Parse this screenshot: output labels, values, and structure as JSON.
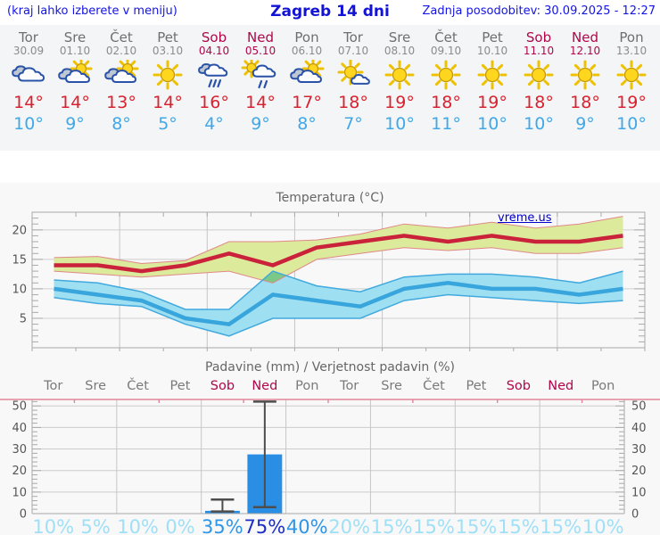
{
  "header": {
    "left_note": "(kraj lahko izberete v meniju)",
    "title": "Zagreb 14 dni",
    "updated": "Zadnja posodobitev: 30.09.2025 - 12:27"
  },
  "watermark": "vreme.us",
  "days": [
    {
      "name": "Tor",
      "date": "30.09",
      "icon": "cloudy",
      "high": "14°",
      "low": "10°",
      "weekend": false
    },
    {
      "name": "Sre",
      "date": "01.10",
      "icon": "partly-cloudy",
      "high": "14°",
      "low": "9°",
      "weekend": false
    },
    {
      "name": "Čet",
      "date": "02.10",
      "icon": "partly-cloudy",
      "high": "13°",
      "low": "8°",
      "weekend": false
    },
    {
      "name": "Pet",
      "date": "03.10",
      "icon": "sunny",
      "high": "14°",
      "low": "5°",
      "weekend": false
    },
    {
      "name": "Sob",
      "date": "04.10",
      "icon": "rain",
      "high": "16°",
      "low": "4°",
      "weekend": true
    },
    {
      "name": "Ned",
      "date": "05.10",
      "icon": "sun-rain",
      "high": "14°",
      "low": "9°",
      "weekend": true
    },
    {
      "name": "Pon",
      "date": "06.10",
      "icon": "partly-cloudy",
      "high": "17°",
      "low": "8°",
      "weekend": false
    },
    {
      "name": "Tor",
      "date": "07.10",
      "icon": "mostly-sunny",
      "high": "18°",
      "low": "7°",
      "weekend": false
    },
    {
      "name": "Sre",
      "date": "08.10",
      "icon": "sunny",
      "high": "19°",
      "low": "10°",
      "weekend": false
    },
    {
      "name": "Čet",
      "date": "09.10",
      "icon": "sunny",
      "high": "18°",
      "low": "11°",
      "weekend": false
    },
    {
      "name": "Pet",
      "date": "10.10",
      "icon": "sunny",
      "high": "19°",
      "low": "10°",
      "weekend": false
    },
    {
      "name": "Sob",
      "date": "11.10",
      "icon": "sunny",
      "high": "18°",
      "low": "10°",
      "weekend": true
    },
    {
      "name": "Ned",
      "date": "12.10",
      "icon": "sunny",
      "high": "18°",
      "low": "9°",
      "weekend": true
    },
    {
      "name": "Pon",
      "date": "13.10",
      "icon": "sunny",
      "high": "19°",
      "low": "10°",
      "weekend": false
    }
  ],
  "colors": {
    "header_blue": "#1414e6",
    "weekend": "#b0064a",
    "day_gray": "#6f6f6f",
    "high_red": "#d8222f",
    "low_blue": "#41a8e8",
    "prob_low": "#9fe0f7",
    "prob_mid": "#2e96e8",
    "prob_high": "#1c2dc6"
  },
  "chart_data": [
    {
      "type": "line",
      "title": "Temperatura (°C)",
      "x": [
        "Tor 30.09",
        "Sre 01.10",
        "Čet 02.10",
        "Pet 03.10",
        "Sob 04.10",
        "Ned 05.10",
        "Pon 06.10",
        "Tor 07.10",
        "Sre 08.10",
        "Čet 09.10",
        "Pet 10.10",
        "Sob 11.10",
        "Ned 12.10",
        "Pon 13.10"
      ],
      "ylim": [
        0,
        23
      ],
      "yticks": [
        5,
        10,
        15,
        20
      ],
      "grid": "on",
      "series": [
        {
          "name": "max temperature",
          "color": "#c9223a",
          "band_color": "#dcea9b",
          "band_edge": "#e08888",
          "values": [
            14,
            14,
            13,
            14,
            16,
            14,
            17,
            18,
            19,
            18,
            19,
            18,
            18,
            19
          ],
          "band_hi": [
            15.3,
            15.5,
            14.3,
            14.8,
            18,
            18,
            18.3,
            19.3,
            21,
            20.3,
            21.3,
            20.3,
            21,
            22.3
          ],
          "band_lo": [
            13,
            12.5,
            12,
            12.5,
            13,
            11,
            15,
            16,
            17,
            16.5,
            17,
            16,
            16,
            17
          ]
        },
        {
          "name": "min temperature",
          "color": "#38a6dc",
          "band_color": "#9fdff2",
          "band_edge": "#41a9dd",
          "values": [
            10,
            9,
            8,
            5,
            4,
            9,
            8,
            7,
            10,
            11,
            10,
            10,
            9,
            10
          ],
          "band_hi": [
            11.5,
            11,
            9.5,
            6.5,
            6.5,
            13,
            10.5,
            9.5,
            12,
            12.5,
            12.5,
            12,
            11,
            13
          ],
          "band_lo": [
            8.5,
            7.5,
            7,
            4,
            2,
            5,
            5,
            5,
            8,
            9,
            8.5,
            8,
            7.5,
            8
          ]
        }
      ],
      "overlap_color": "#7cc987",
      "annotation": "vreme.us"
    },
    {
      "type": "bar",
      "title": "Padavine (mm) / Verjetnost padavin (%)",
      "categories": [
        "Tor",
        "Sre",
        "Čet",
        "Pet",
        "Sob",
        "Ned",
        "Pon",
        "Tor",
        "Sre",
        "Čet",
        "Pet",
        "Sob",
        "Ned",
        "Pon"
      ],
      "weekend": [
        false,
        false,
        false,
        false,
        true,
        true,
        false,
        false,
        false,
        false,
        false,
        true,
        true,
        false
      ],
      "values": [
        0,
        0,
        0,
        0,
        1.3,
        27.5,
        0,
        0,
        0,
        0,
        0,
        0,
        0,
        0
      ],
      "whiskers": [
        null,
        null,
        null,
        null,
        {
          "lo": 1,
          "hi": 6.5
        },
        {
          "lo": 3,
          "hi": 52
        },
        null,
        null,
        null,
        null,
        null,
        null,
        null,
        null
      ],
      "probabilities": [
        10,
        5,
        10,
        0,
        35,
        75,
        40,
        20,
        15,
        15,
        15,
        15,
        15,
        10
      ],
      "ylim": [
        0,
        53
      ],
      "yticks": [
        0,
        10,
        20,
        30,
        40,
        50
      ],
      "grid": "on",
      "bar_color": "#2a8ee4",
      "whisker_color": "#4d4d4d"
    }
  ]
}
